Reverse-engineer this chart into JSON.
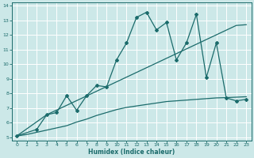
{
  "xlabel": "Humidex (Indice chaleur)",
  "xlim": [
    -0.5,
    23.5
  ],
  "ylim": [
    4.8,
    14.2
  ],
  "xticks": [
    0,
    1,
    2,
    3,
    4,
    5,
    6,
    7,
    8,
    9,
    10,
    11,
    12,
    13,
    14,
    15,
    16,
    17,
    18,
    19,
    20,
    21,
    22,
    23
  ],
  "yticks": [
    5,
    6,
    7,
    8,
    9,
    10,
    11,
    12,
    13,
    14
  ],
  "bg_color": "#cce8e8",
  "grid_color": "#ffffff",
  "line_color": "#1b6b6b",
  "line1_x": [
    0,
    2,
    3,
    4,
    5,
    6,
    7,
    8,
    9,
    10,
    11,
    12,
    13,
    14,
    15,
    16,
    17,
    18,
    19,
    20,
    21,
    22,
    23
  ],
  "line1_y": [
    5.1,
    5.55,
    6.55,
    6.7,
    7.85,
    6.85,
    7.85,
    8.55,
    8.45,
    10.3,
    11.45,
    13.2,
    13.55,
    12.35,
    12.85,
    10.3,
    11.45,
    13.4,
    9.1,
    11.45,
    7.7,
    7.5,
    7.6
  ],
  "line2_x": [
    0,
    3,
    22,
    23
  ],
  "line2_y": [
    5.1,
    6.55,
    12.65,
    12.7
  ],
  "line3_x": [
    0,
    1,
    2,
    3,
    4,
    5,
    6,
    7,
    8,
    9,
    10,
    11,
    12,
    13,
    14,
    15,
    16,
    17,
    18,
    19,
    20,
    21,
    22,
    23
  ],
  "line3_y": [
    5.1,
    5.2,
    5.35,
    5.5,
    5.65,
    5.8,
    6.05,
    6.25,
    6.5,
    6.7,
    6.9,
    7.05,
    7.15,
    7.25,
    7.35,
    7.45,
    7.5,
    7.55,
    7.6,
    7.65,
    7.7,
    7.72,
    7.75,
    7.78
  ]
}
